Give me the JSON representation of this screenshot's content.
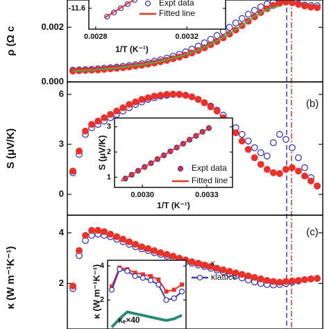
{
  "chart_data": [
    {
      "type": "scatter",
      "ylabel": "ρ (Ω c",
      "ylim": [
        0,
        0.003
      ],
      "yticks": [
        {
          "value": 0,
          "label": "0.000"
        },
        {
          "value": 0.002,
          "label": "0.002"
        }
      ],
      "series": [
        {
          "color": "#3b3bb3",
          "marker": "open",
          "values": [
            0.00043,
            0.00044,
            0.00045,
            0.00046,
            0.00048,
            0.0005,
            0.00052,
            0.00054,
            0.00057,
            0.0006,
            0.00063,
            0.00067,
            0.00071,
            0.00076,
            0.00081,
            0.00087,
            0.00094,
            0.00101,
            0.0011,
            0.0012,
            0.00131,
            0.00143,
            0.00156,
            0.0017,
            0.00185,
            0.002,
            0.00216,
            0.00232,
            0.00248,
            0.00262,
            0.00275,
            0.00285,
            0.00292,
            0.00296,
            0.00294,
            0.0029,
            0.00286,
            0.00282,
            0.0028,
            0.00279
          ]
        },
        {
          "color": "#e8322a",
          "marker": "filled",
          "values": [
            0.0004,
            0.00041,
            0.00042,
            0.00043,
            0.00044,
            0.00046,
            0.00048,
            0.0005,
            0.00052,
            0.00055,
            0.00058,
            0.00061,
            0.00065,
            0.00069,
            0.00074,
            0.00079,
            0.00085,
            0.00091,
            0.00098,
            0.00106,
            0.00115,
            0.00125,
            0.00136,
            0.00148,
            0.00161,
            0.00175,
            0.0019,
            0.00206,
            0.00222,
            0.00238,
            0.00254,
            0.00268,
            0.0028,
            0.00288,
            0.00292,
            0.0029,
            0.00284,
            0.00278,
            0.00274,
            0.00272
          ]
        },
        {
          "color": "#4caf50",
          "line": true,
          "values": [
            0.0004,
            0.00041,
            0.00042,
            0.00043,
            0.00045,
            0.00047,
            0.00049,
            0.00051,
            0.00054,
            0.00057,
            0.0006,
            0.00063,
            0.00067,
            0.00071,
            0.00076,
            0.00081,
            0.00087,
            0.00093,
            0.001,
            0.00108,
            0.00117,
            0.00127,
            0.00138,
            0.0015,
            0.00163,
            0.00177,
            0.00192,
            0.00208,
            0.00224,
            0.0024,
            0.00254,
            0.00264,
            0.00272,
            0.00278,
            null,
            null,
            null,
            null,
            null,
            null
          ]
        }
      ]
    },
    {
      "type": "scatter",
      "ylabel": "S (μV/K)",
      "label": "(b)",
      "ylim": [
        -1.25,
        6.75
      ],
      "yticks": [
        0,
        3,
        6
      ],
      "series": [
        {
          "color": "#3b3bb3",
          "marker": "open",
          "values": [
            1.3,
            2.4,
            3.6,
            4.0,
            4.2,
            4.4,
            4.6,
            4.8,
            5.0,
            5.2,
            5.4,
            5.55,
            5.7,
            5.8,
            5.9,
            5.95,
            6.0,
            6.0,
            5.95,
            5.85,
            5.7,
            5.5,
            5.3,
            5.05,
            4.75,
            4.4,
            4.0,
            3.6,
            3.2,
            2.8,
            2.5,
            2.3,
            3.1,
            3.6,
            3.3,
            2.8,
            2.2,
            1.6,
            1.0,
            0.5
          ]
        },
        {
          "color": "#e8322a",
          "marker": "filled",
          "values": [
            1.4,
            2.6,
            3.8,
            4.2,
            4.4,
            4.6,
            4.8,
            5.0,
            5.2,
            5.4,
            5.55,
            5.7,
            5.8,
            5.9,
            5.95,
            6.0,
            6.02,
            6.0,
            5.95,
            5.85,
            5.7,
            5.5,
            5.25,
            5.0,
            4.6,
            4.2,
            3.7,
            3.2,
            2.7,
            2.2,
            1.8,
            1.5,
            1.3,
            1.25,
            1.5,
            1.6,
            1.4,
            1.1,
            0.8,
            0.5
          ]
        }
      ]
    },
    {
      "type": "scatter",
      "ylabel": "κ (W m⁻¹K⁻¹)",
      "label": "(c)",
      "ylim": [
        0.2,
        4.7
      ],
      "yticks": [
        2,
        4
      ],
      "series": [
        {
          "color": "#3b3bb3",
          "marker": "open",
          "values": [
            1.8,
            3.1,
            3.7,
            3.9,
            3.95,
            3.9,
            3.85,
            3.75,
            3.65,
            3.55,
            3.45,
            3.37,
            3.3,
            3.22,
            3.15,
            3.08,
            3.0,
            2.93,
            2.86,
            2.8,
            2.73,
            2.67,
            2.6,
            2.53,
            2.46,
            2.38,
            2.3,
            2.22,
            2.14,
            2.06,
            2.0,
            1.96,
            1.94,
            1.96,
            2.0,
            2.05,
            2.1,
            2.15,
            2.18,
            2.2
          ]
        },
        {
          "color": "#e8322a",
          "marker": "filled",
          "values": [
            1.9,
            3.3,
            3.9,
            4.1,
            4.1,
            4.05,
            3.95,
            3.85,
            3.75,
            3.65,
            3.55,
            3.45,
            3.38,
            3.3,
            3.22,
            3.15,
            3.08,
            3.0,
            2.93,
            2.86,
            2.8,
            2.73,
            2.67,
            2.6,
            2.54,
            2.48,
            2.42,
            2.36,
            2.3,
            2.24,
            2.18,
            2.12,
            2.08,
            2.05,
            2.08,
            2.1,
            2.12,
            2.15,
            2.18,
            2.2
          ]
        }
      ]
    },
    {
      "type": "scatter",
      "xlabel": "1/T (K⁻¹)",
      "xlim": [
        0.00277,
        0.00337
      ],
      "xticks": [
        {
          "value": 0.0028,
          "label": "0.0028"
        },
        {
          "value": 0.0032,
          "label": "0.0032"
        }
      ],
      "ylim": [
        -11.7,
        -11.4
      ],
      "yticks": [
        -11.6
      ],
      "series": [
        {
          "name": "Expt data",
          "color": "#3b3bb3",
          "marker": "open",
          "x": [
            0.00285,
            0.00288,
            0.00291,
            0.00294,
            0.00297,
            0.003,
            0.00303
          ],
          "values": [
            -11.64,
            -11.62,
            -11.6,
            -11.58,
            -11.56,
            -11.54,
            -11.52
          ]
        },
        {
          "name": "Fitted line",
          "color": "#e8322a",
          "line": true,
          "x": [
            0.00284,
            0.00304
          ],
          "values": [
            -11.645,
            -11.51
          ]
        }
      ]
    },
    {
      "type": "scatter",
      "xlabel": "1/T (K⁻¹)",
      "ylabel": "S (μV/K)",
      "xlim": [
        0.00287,
        0.00342
      ],
      "xticks": [
        {
          "value": 0.003,
          "label": "0.0030"
        },
        {
          "value": 0.0033,
          "label": "0.0033"
        }
      ],
      "ylim": [
        0.6,
        3.35
      ],
      "yticks": [
        1,
        2,
        3
      ],
      "series": [
        {
          "name": "Expt data",
          "color": "#3b3bb3",
          "fill": "#e8322a",
          "marker": "filled",
          "x": [
            0.00292,
            0.00295,
            0.00298,
            0.00301,
            0.00304,
            0.00307,
            0.0031,
            0.00313,
            0.00316,
            0.00319,
            0.00322,
            0.00325,
            0.00328,
            0.00331
          ],
          "values": [
            0.95,
            1.1,
            1.26,
            1.41,
            1.56,
            1.72,
            1.87,
            2.03,
            2.18,
            2.33,
            2.49,
            2.64,
            2.8,
            2.95
          ]
        },
        {
          "name": "Fitted line",
          "color": "#e8322a",
          "line": true,
          "x": [
            0.0029,
            0.00332
          ],
          "values": [
            0.85,
            3.0
          ]
        }
      ]
    },
    {
      "type": "scatter",
      "ylabel": "κ (W m⁻¹K⁻¹)",
      "ylim": [
        0.3,
        4.33
      ],
      "yticks": [
        2,
        4
      ],
      "series": [
        {
          "name": "κ",
          "color": "#e8322a",
          "marker": "square",
          "line": true,
          "values": [
            2.8,
            3.9,
            3.8,
            3.6,
            3.5,
            3.4,
            3.2,
            2.5,
            2.6,
            2.9
          ]
        },
        {
          "name": "κlattice",
          "color": "#3b3bb3",
          "marker": "open",
          "line": true,
          "values": [
            2.6,
            3.8,
            3.7,
            3.4,
            3.3,
            3.15,
            2.9,
            2.0,
            2.1,
            2.5
          ]
        },
        {
          "name": "κₑ×40",
          "color": "#2a8a7a",
          "line": true,
          "width": 4,
          "values": [
            0.4,
            0.9,
            1.3,
            1.2,
            1.1,
            1.0,
            0.9,
            0.8,
            0.9,
            1.1
          ]
        }
      ]
    }
  ]
}
